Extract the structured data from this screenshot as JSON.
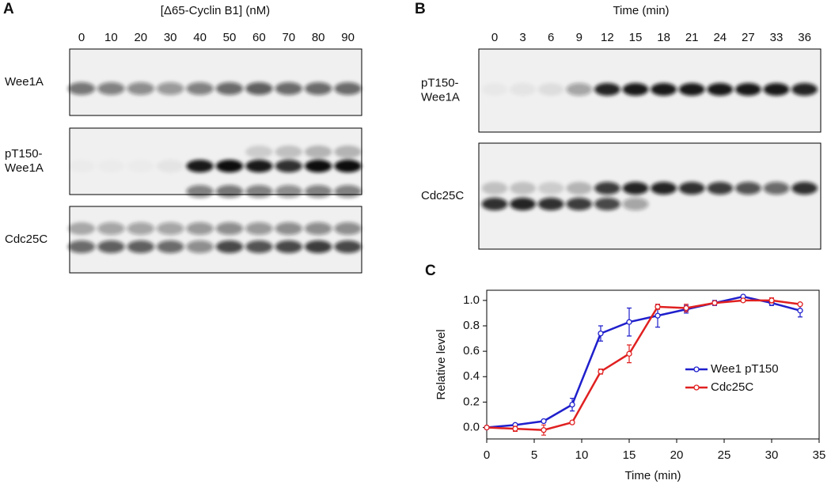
{
  "panel_a": {
    "letter": "A",
    "title": "[Δ65-Cyclin B1] (nM)",
    "lanes": [
      0,
      10,
      20,
      30,
      40,
      50,
      60,
      70,
      80,
      90
    ],
    "rows": [
      [
        "Wee1A"
      ],
      [
        "pT150-",
        "Wee1A"
      ],
      [
        "Cdc25C"
      ]
    ]
  },
  "panel_b": {
    "letter": "B",
    "title": "Time (min)",
    "lanes": [
      0,
      3,
      6,
      9,
      12,
      15,
      18,
      21,
      24,
      27,
      33,
      36
    ],
    "rows": [
      [
        "pT150-",
        "Wee1A"
      ],
      [
        "Cdc25C"
      ]
    ]
  },
  "panel_c": {
    "letter": "C"
  },
  "chart_data": {
    "type": "line",
    "xlabel": "Time (min)",
    "ylabel": "Relative level",
    "x": [
      0,
      3,
      6,
      9,
      12,
      15,
      18,
      21,
      24,
      27,
      30,
      33
    ],
    "series": [
      {
        "name": "Wee1 pT150",
        "color": "#1f1fcc",
        "values": [
          0,
          0.02,
          0.05,
          0.18,
          0.74,
          0.83,
          0.88,
          0.93,
          0.98,
          1.03,
          0.98,
          0.92
        ],
        "errors": [
          0,
          0.01,
          0.01,
          0.05,
          0.06,
          0.11,
          0.09,
          0.03,
          0.02,
          0.01,
          0.02,
          0.05
        ]
      },
      {
        "name": "Cdc25C",
        "color": "#e02020",
        "values": [
          0,
          -0.01,
          -0.02,
          0.04,
          0.44,
          0.58,
          0.95,
          0.94,
          0.98,
          1.0,
          1.0,
          0.97
        ],
        "errors": [
          0,
          0.02,
          0.04,
          0.01,
          0.02,
          0.07,
          0.02,
          0.03,
          0.01,
          0.01,
          0.02,
          0.01
        ]
      }
    ],
    "xlim": [
      0,
      35
    ],
    "ylim": [
      -0.09,
      1.08
    ],
    "xticks": [
      0,
      5,
      10,
      15,
      20,
      25,
      30,
      35
    ],
    "yticks": [
      {
        "value": 0,
        "label": "0.0"
      },
      {
        "value": 0.2,
        "label": "0.2"
      },
      {
        "value": 0.4,
        "label": "0.4"
      },
      {
        "value": 0.6,
        "label": "0.6"
      },
      {
        "value": 0.8,
        "label": "0.8"
      },
      {
        "value": 1,
        "label": "1.0"
      }
    ],
    "legend": "center-right"
  }
}
